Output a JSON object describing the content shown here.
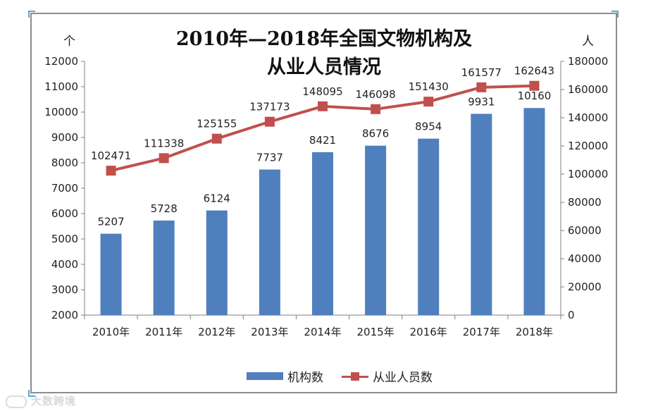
{
  "chart_data": {
    "type": "bar+line",
    "title_line1": "2010年—2018年全国文物机构及",
    "title_line2": "从业人员情况",
    "left_unit": "个",
    "right_unit": "人",
    "categories": [
      "2010年",
      "2011年",
      "2012年",
      "2013年",
      "2014年",
      "2015年",
      "2016年",
      "2017年",
      "2018年"
    ],
    "series": [
      {
        "name": "机构数",
        "type": "bar",
        "axis": "left",
        "color": "#4f7fbd",
        "values": [
          5207,
          5728,
          6124,
          7737,
          8421,
          8676,
          8954,
          9931,
          10160
        ]
      },
      {
        "name": "从业人员数",
        "type": "line",
        "axis": "right",
        "color": "#c0504d",
        "values": [
          102471,
          111338,
          125155,
          137173,
          148095,
          146098,
          151430,
          161577,
          162643
        ]
      }
    ],
    "left_axis": {
      "min": 2000,
      "max": 12000,
      "ticks": [
        2000,
        3000,
        4000,
        5000,
        6000,
        7000,
        8000,
        9000,
        10000,
        11000,
        12000
      ]
    },
    "right_axis": {
      "min": 0,
      "max": 180000,
      "ticks": [
        0,
        20000,
        40000,
        60000,
        80000,
        100000,
        120000,
        140000,
        160000,
        180000
      ]
    },
    "legend_position": "bottom"
  },
  "watermark": "大数跨境"
}
